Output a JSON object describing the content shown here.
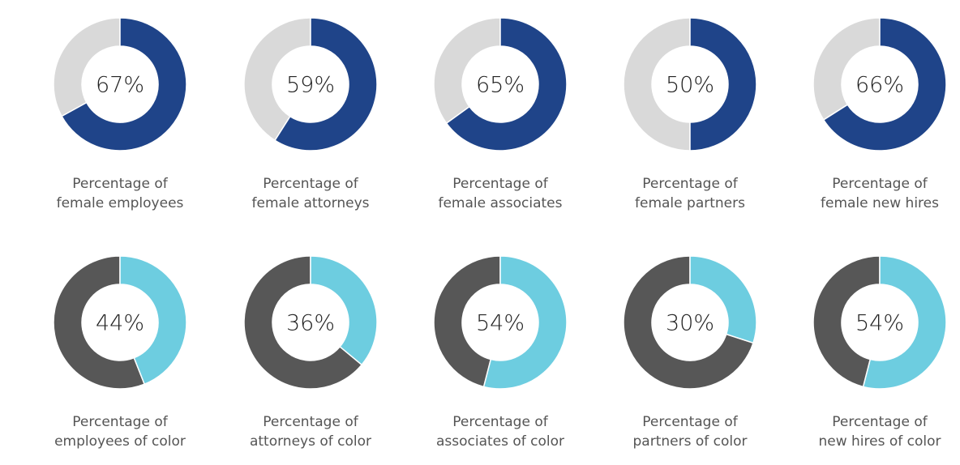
{
  "chart_data": [
    {
      "type": "pie",
      "row": 1,
      "value": 67,
      "label": "67%",
      "caption": [
        "Percentage of",
        "female employees"
      ],
      "colors": {
        "value": "#1f4489",
        "rest": "#d9d9d9"
      }
    },
    {
      "type": "pie",
      "row": 1,
      "value": 59,
      "label": "59%",
      "caption": [
        "Percentage of",
        "female attorneys"
      ],
      "colors": {
        "value": "#1f4489",
        "rest": "#d9d9d9"
      }
    },
    {
      "type": "pie",
      "row": 1,
      "value": 65,
      "label": "65%",
      "caption": [
        "Percentage of",
        "female associates"
      ],
      "colors": {
        "value": "#1f4489",
        "rest": "#d9d9d9"
      }
    },
    {
      "type": "pie",
      "row": 1,
      "value": 50,
      "label": "50%",
      "caption": [
        "Percentage of",
        "female partners"
      ],
      "colors": {
        "value": "#1f4489",
        "rest": "#d9d9d9"
      }
    },
    {
      "type": "pie",
      "row": 1,
      "value": 66,
      "label": "66%",
      "caption": [
        "Percentage of",
        "female new hires"
      ],
      "colors": {
        "value": "#1f4489",
        "rest": "#d9d9d9"
      }
    },
    {
      "type": "pie",
      "row": 2,
      "value": 44,
      "label": "44%",
      "caption": [
        "Percentage of",
        "employees of color"
      ],
      "colors": {
        "value": "#6dcde0",
        "rest": "#575757"
      }
    },
    {
      "type": "pie",
      "row": 2,
      "value": 36,
      "label": "36%",
      "caption": [
        "Percentage of",
        "attorneys of color"
      ],
      "colors": {
        "value": "#6dcde0",
        "rest": "#575757"
      }
    },
    {
      "type": "pie",
      "row": 2,
      "value": 54,
      "label": "54%",
      "caption": [
        "Percentage of",
        "associates of color"
      ],
      "colors": {
        "value": "#6dcde0",
        "rest": "#575757"
      }
    },
    {
      "type": "pie",
      "row": 2,
      "value": 30,
      "label": "30%",
      "caption": [
        "Percentage of",
        "partners of color"
      ],
      "colors": {
        "value": "#6dcde0",
        "rest": "#575757"
      }
    },
    {
      "type": "pie",
      "row": 2,
      "value": 54,
      "label": "54%",
      "caption": [
        "Percentage of",
        "new hires of color"
      ],
      "colors": {
        "value": "#6dcde0",
        "rest": "#575757"
      }
    }
  ]
}
